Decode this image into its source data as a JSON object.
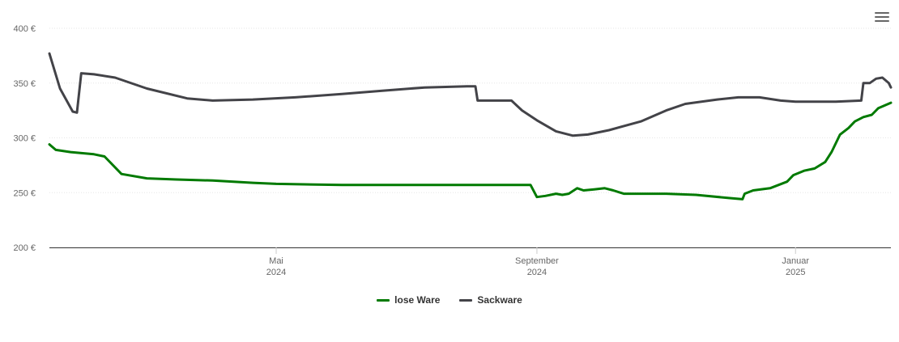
{
  "chart_data": {
    "type": "line",
    "ylim": [
      200,
      400
    ],
    "y_ticks": [
      {
        "value": 200,
        "label": "200 €"
      },
      {
        "value": 250,
        "label": "250 €"
      },
      {
        "value": 300,
        "label": "300 €"
      },
      {
        "value": 350,
        "label": "350 €"
      },
      {
        "value": 400,
        "label": "400 €"
      }
    ],
    "xlim": [
      "2024-01-15",
      "2025-02-15"
    ],
    "x_ticks": [
      {
        "date": "2024-05-01",
        "line1": "Mai",
        "line2": "2024"
      },
      {
        "date": "2024-09-01",
        "line1": "September",
        "line2": "2024"
      },
      {
        "date": "2025-01-01",
        "line1": "Januar",
        "line2": "2025"
      }
    ],
    "grid": true,
    "legend": "bottom-center",
    "series": [
      {
        "name": "lose Ware",
        "color": "#007a00",
        "points": [
          [
            "2024-01-15",
            294
          ],
          [
            "2024-01-18",
            289
          ],
          [
            "2024-01-25",
            287
          ],
          [
            "2024-02-05",
            285
          ],
          [
            "2024-02-10",
            283
          ],
          [
            "2024-02-18",
            267
          ],
          [
            "2024-03-01",
            263
          ],
          [
            "2024-03-15",
            262
          ],
          [
            "2024-04-01",
            261
          ],
          [
            "2024-04-20",
            259
          ],
          [
            "2024-05-01",
            258
          ],
          [
            "2024-06-01",
            257
          ],
          [
            "2024-07-01",
            257
          ],
          [
            "2024-08-01",
            257
          ],
          [
            "2024-08-29",
            257
          ],
          [
            "2024-09-01",
            246
          ],
          [
            "2024-09-05",
            247
          ],
          [
            "2024-09-10",
            249
          ],
          [
            "2024-09-13",
            248
          ],
          [
            "2024-09-16",
            249
          ],
          [
            "2024-09-20",
            254
          ],
          [
            "2024-09-23",
            252
          ],
          [
            "2024-09-28",
            253
          ],
          [
            "2024-10-03",
            254
          ],
          [
            "2024-10-07",
            252
          ],
          [
            "2024-10-12",
            249
          ],
          [
            "2024-11-01",
            249
          ],
          [
            "2024-11-15",
            248
          ],
          [
            "2024-12-01",
            245
          ],
          [
            "2024-12-07",
            244
          ],
          [
            "2024-12-08",
            249
          ],
          [
            "2024-12-12",
            252
          ],
          [
            "2024-12-20",
            254
          ],
          [
            "2024-12-28",
            260
          ],
          [
            "2024-12-31",
            266
          ],
          [
            "2025-01-05",
            270
          ],
          [
            "2025-01-10",
            272
          ],
          [
            "2025-01-15",
            278
          ],
          [
            "2025-01-18",
            287
          ],
          [
            "2025-01-22",
            303
          ],
          [
            "2025-01-26",
            309
          ],
          [
            "2025-01-29",
            315
          ],
          [
            "2025-02-02",
            319
          ],
          [
            "2025-02-06",
            321
          ],
          [
            "2025-02-09",
            327
          ],
          [
            "2025-02-15",
            332
          ]
        ]
      },
      {
        "name": "Sackware",
        "color": "#434348",
        "points": [
          [
            "2024-01-15",
            377
          ],
          [
            "2024-01-20",
            345
          ],
          [
            "2024-01-26",
            324
          ],
          [
            "2024-01-28",
            323
          ],
          [
            "2024-01-30",
            359
          ],
          [
            "2024-02-05",
            358
          ],
          [
            "2024-02-15",
            355
          ],
          [
            "2024-03-01",
            345
          ],
          [
            "2024-03-20",
            336
          ],
          [
            "2024-04-01",
            334
          ],
          [
            "2024-04-20",
            335
          ],
          [
            "2024-05-10",
            337
          ],
          [
            "2024-06-01",
            340
          ],
          [
            "2024-06-20",
            343
          ],
          [
            "2024-07-10",
            346
          ],
          [
            "2024-07-30",
            347
          ],
          [
            "2024-08-03",
            347
          ],
          [
            "2024-08-04",
            334
          ],
          [
            "2024-08-20",
            334
          ],
          [
            "2024-08-25",
            325
          ],
          [
            "2024-09-01",
            316
          ],
          [
            "2024-09-10",
            306
          ],
          [
            "2024-09-18",
            302
          ],
          [
            "2024-09-25",
            303
          ],
          [
            "2024-10-05",
            307
          ],
          [
            "2024-10-20",
            315
          ],
          [
            "2024-11-01",
            325
          ],
          [
            "2024-11-10",
            331
          ],
          [
            "2024-11-25",
            335
          ],
          [
            "2024-12-05",
            337
          ],
          [
            "2024-12-15",
            337
          ],
          [
            "2024-12-25",
            334
          ],
          [
            "2025-01-01",
            333
          ],
          [
            "2025-01-20",
            333
          ],
          [
            "2025-02-01",
            334
          ],
          [
            "2025-02-02",
            350
          ],
          [
            "2025-02-05",
            350
          ],
          [
            "2025-02-08",
            354
          ],
          [
            "2025-02-11",
            355
          ],
          [
            "2025-02-14",
            350
          ],
          [
            "2025-02-15",
            346
          ]
        ]
      }
    ]
  },
  "ui": {
    "menu_icon": "hamburger-menu-icon"
  }
}
